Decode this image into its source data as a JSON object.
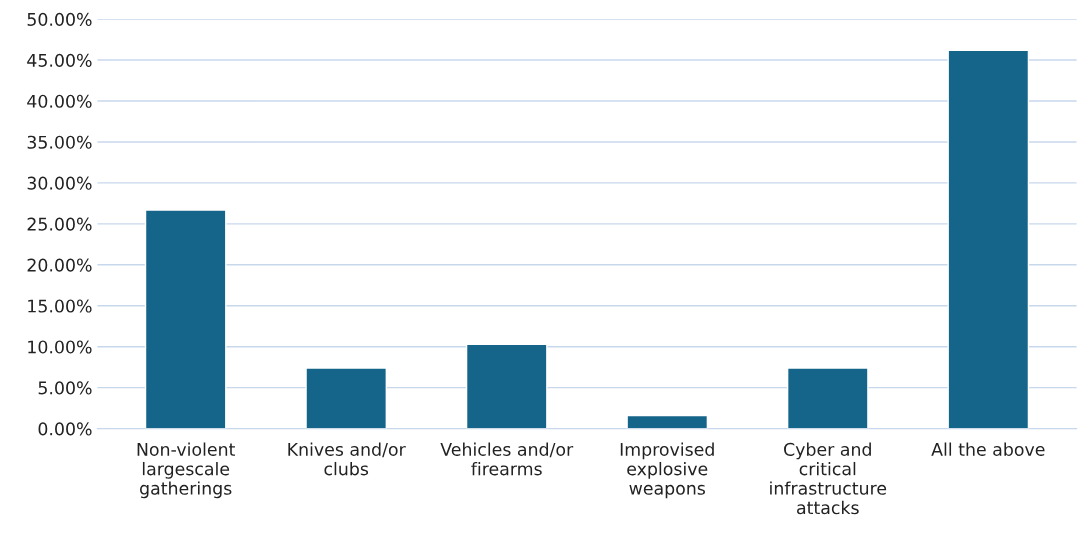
{
  "chart_data": {
    "type": "bar",
    "categories": [
      "Non-violent\nlargescale\ngatherings",
      "Knives and/or\nclubs",
      "Vehicles and/or\nfirearms",
      "Improvised\nexplosive\nweapons",
      "Cyber and\ncritical\ninfrastructure\nattacks",
      "All the above"
    ],
    "values": [
      26.7,
      7.4,
      10.3,
      1.6,
      7.4,
      46.2
    ],
    "color": "#15648a",
    "ylim": [
      0,
      50
    ],
    "yticks": [
      {
        "value": 0,
        "label": "0.00%"
      },
      {
        "value": 5,
        "label": "5.00%"
      },
      {
        "value": 10,
        "label": "10.00%"
      },
      {
        "value": 15,
        "label": "15.00%"
      },
      {
        "value": 20,
        "label": "20.00%"
      },
      {
        "value": 25,
        "label": "25.00%"
      },
      {
        "value": 30,
        "label": "30.00%"
      },
      {
        "value": 35,
        "label": "35.00%"
      },
      {
        "value": 40,
        "label": "40.00%"
      },
      {
        "value": 45,
        "label": "45.00%"
      },
      {
        "value": 50,
        "label": "50.00%"
      }
    ],
    "grid": "y"
  }
}
